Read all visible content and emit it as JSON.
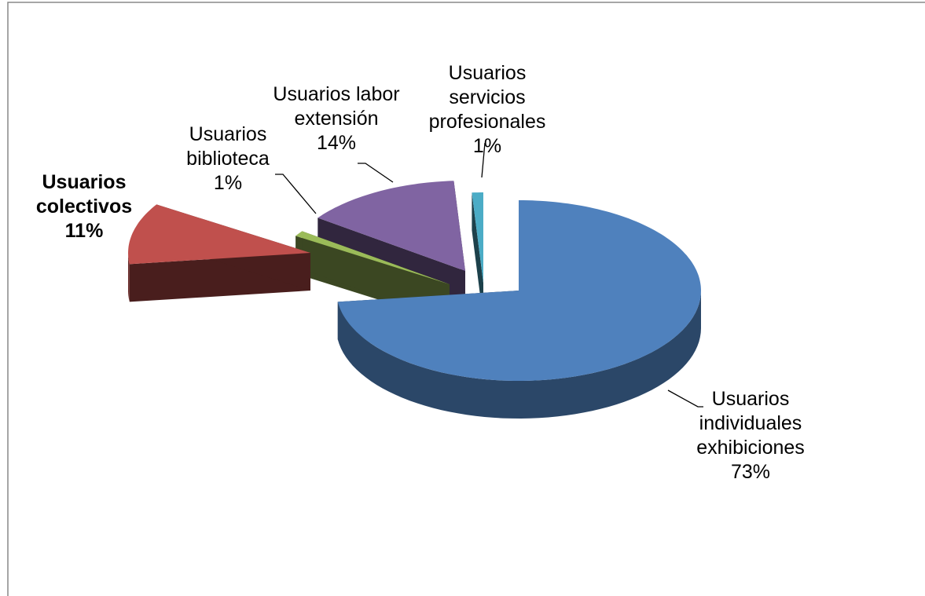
{
  "chart_data": {
    "type": "pie",
    "categories": [
      "Usuarios individuales exhibiciones",
      "Usuarios colectivos",
      "Usuarios biblioteca",
      "Usuarios labor extensión",
      "Usuarios servicios profesionales"
    ],
    "values": [
      73,
      11,
      1,
      14,
      1
    ],
    "value_labels": [
      "73%",
      "11%",
      "1%",
      "14%",
      "1%"
    ],
    "colors": [
      "#4f81bd",
      "#c0504d",
      "#9bbb59",
      "#8064a2",
      "#4bacc6"
    ]
  }
}
